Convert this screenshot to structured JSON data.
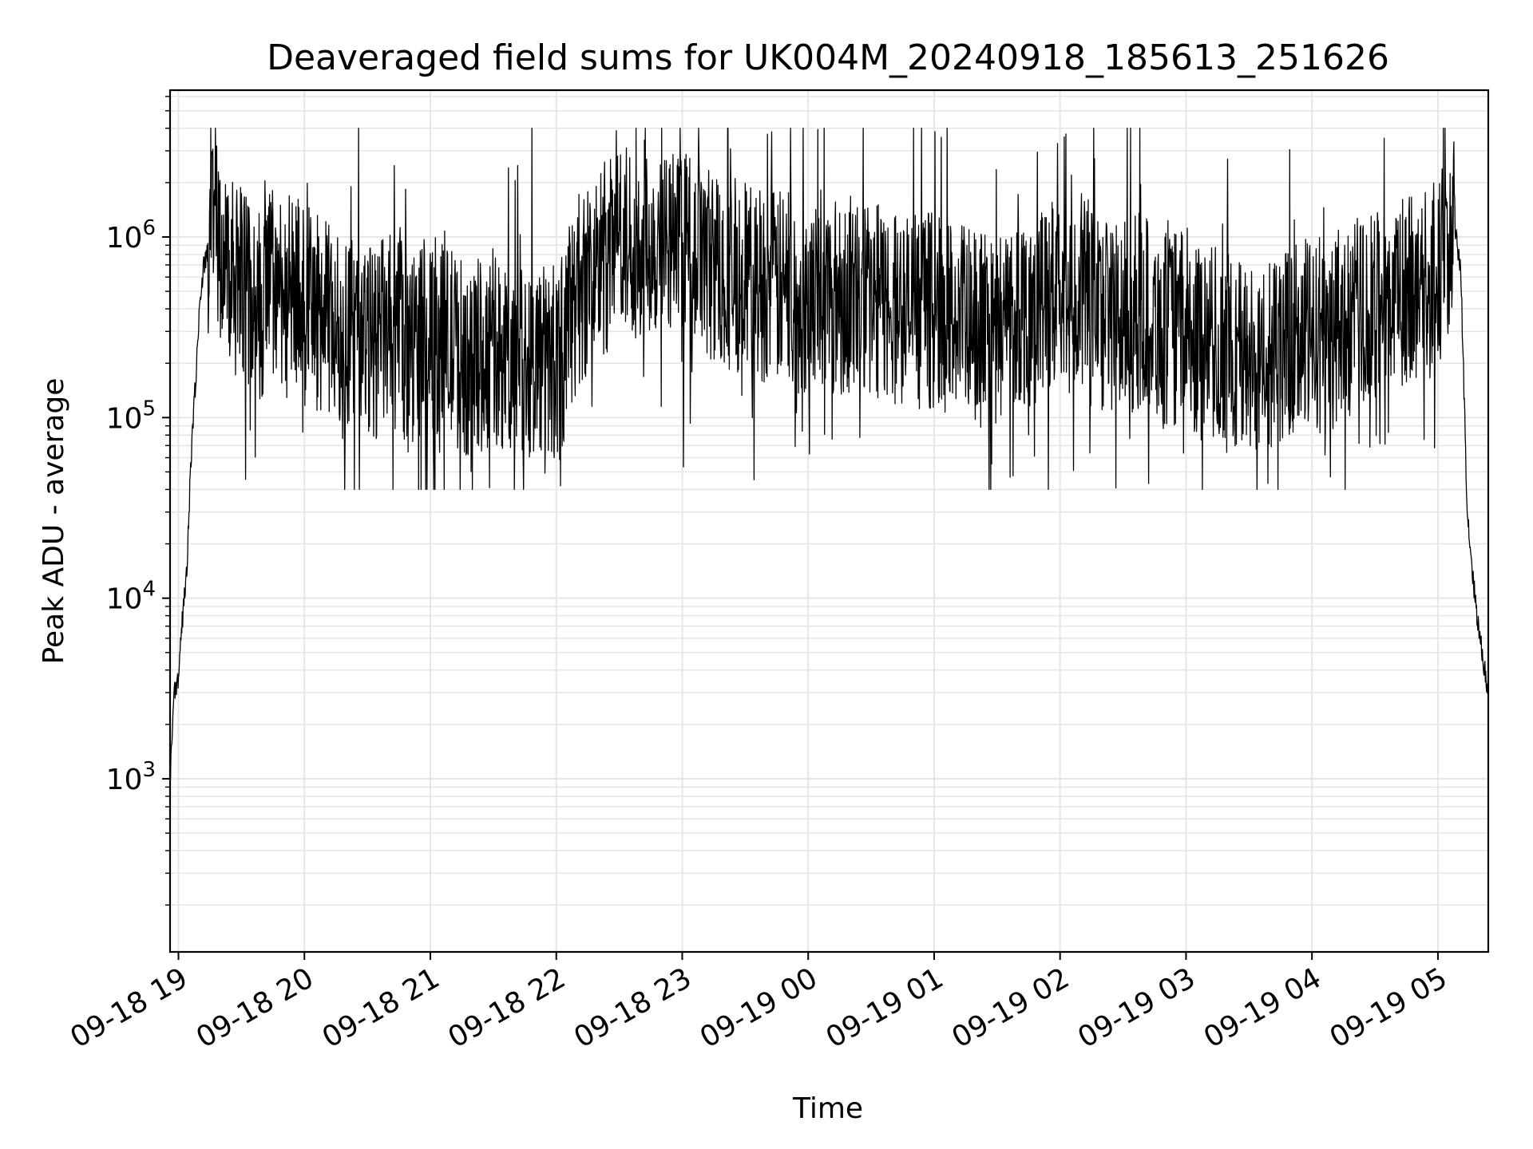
{
  "chart_data": {
    "type": "line",
    "title": "Deaveraged field sums for UK004M_20240918_185613_251626",
    "xlabel": "Time",
    "ylabel": "Peak ADU - average",
    "xscale": "time",
    "yscale": "log",
    "grid": true,
    "grid_minor": true,
    "line_color": "#000000",
    "grid_color": "#e6e6e6",
    "xlim": [
      "2024-09-18 18:56",
      "2024-09-19 05:24"
    ],
    "ylim": [
      110,
      6500000
    ],
    "x_ticks": [
      {
        "value": "2024-09-18 19:00",
        "label": "09-18 19"
      },
      {
        "value": "2024-09-18 20:00",
        "label": "09-18 20"
      },
      {
        "value": "2024-09-18 21:00",
        "label": "09-18 21"
      },
      {
        "value": "2024-09-18 22:00",
        "label": "09-18 22"
      },
      {
        "value": "2024-09-18 23:00",
        "label": "09-18 23"
      },
      {
        "value": "2024-09-19 00:00",
        "label": "09-19 00"
      },
      {
        "value": "2024-09-19 01:00",
        "label": "09-19 01"
      },
      {
        "value": "2024-09-19 02:00",
        "label": "09-19 02"
      },
      {
        "value": "2024-09-19 03:00",
        "label": "09-19 03"
      },
      {
        "value": "2024-09-19 04:00",
        "label": "09-19 04"
      },
      {
        "value": "2024-09-19 05:00",
        "label": "09-19 05"
      }
    ],
    "y_ticks": [
      {
        "value": 1000,
        "base": "10",
        "exp": "3"
      },
      {
        "value": 10000,
        "base": "10",
        "exp": "4"
      },
      {
        "value": 100000,
        "base": "10",
        "exp": "5"
      },
      {
        "value": 1000000,
        "base": "10",
        "exp": "6"
      }
    ],
    "series": [
      {
        "x": [
          "2024-09-18 18:56",
          "2024-09-18 18:58",
          "2024-09-18 19:00",
          "2024-09-18 19:02",
          "2024-09-18 19:04",
          "2024-09-18 19:06",
          "2024-09-18 19:08",
          "2024-09-18 19:10",
          "2024-09-18 19:12",
          "2024-09-18 19:15",
          "2024-09-18 19:18",
          "2024-09-18 19:21",
          "2024-09-18 19:24",
          "2024-09-18 19:27",
          "2024-09-18 19:30",
          "2024-09-18 19:35",
          "2024-09-18 19:40",
          "2024-09-18 19:45",
          "2024-09-18 19:52",
          "2024-09-18 20:00",
          "2024-09-18 20:10",
          "2024-09-18 20:20",
          "2024-09-18 20:30",
          "2024-09-18 20:40",
          "2024-09-18 20:50",
          "2024-09-18 21:00",
          "2024-09-18 21:10",
          "2024-09-18 21:20",
          "2024-09-18 21:30",
          "2024-09-18 21:40",
          "2024-09-18 21:50",
          "2024-09-18 22:00",
          "2024-09-18 22:10",
          "2024-09-18 22:20",
          "2024-09-18 22:30",
          "2024-09-18 22:40",
          "2024-09-18 22:50",
          "2024-09-18 23:00",
          "2024-09-18 23:10",
          "2024-09-18 23:20",
          "2024-09-18 23:30",
          "2024-09-18 23:40",
          "2024-09-18 23:50",
          "2024-09-19 00:00",
          "2024-09-19 00:10",
          "2024-09-19 00:20",
          "2024-09-19 00:30",
          "2024-09-19 00:40",
          "2024-09-19 00:50",
          "2024-09-19 01:00",
          "2024-09-19 01:10",
          "2024-09-19 01:20",
          "2024-09-19 01:30",
          "2024-09-19 01:40",
          "2024-09-19 01:50",
          "2024-09-19 02:00",
          "2024-09-19 02:10",
          "2024-09-19 02:20",
          "2024-09-19 02:30",
          "2024-09-19 02:40",
          "2024-09-19 02:50",
          "2024-09-19 03:00",
          "2024-09-19 03:10",
          "2024-09-19 03:20",
          "2024-09-19 03:30",
          "2024-09-19 03:40",
          "2024-09-19 03:50",
          "2024-09-19 04:00",
          "2024-09-19 04:10",
          "2024-09-19 04:20",
          "2024-09-19 04:30",
          "2024-09-19 04:40",
          "2024-09-19 04:50",
          "2024-09-19 05:00",
          "2024-09-19 05:04",
          "2024-09-19 05:08",
          "2024-09-19 05:11",
          "2024-09-19 05:14",
          "2024-09-19 05:17",
          "2024-09-19 05:20",
          "2024-09-19 05:24"
        ],
        "y": [
          1000,
          3000,
          3500,
          8000,
          15000,
          60000,
          150000,
          400000,
          700000,
          900000,
          1000000,
          800000,
          650000,
          600000,
          600000,
          500000,
          400000,
          600000,
          500000,
          450000,
          350000,
          300000,
          250000,
          300000,
          250000,
          300000,
          250000,
          200000,
          250000,
          200000,
          220000,
          180000,
          500000,
          700000,
          900000,
          1000000,
          950000,
          800000,
          750000,
          650000,
          600000,
          550000,
          500000,
          450000,
          480000,
          500000,
          450000,
          420000,
          380000,
          400000,
          350000,
          300000,
          320000,
          400000,
          420000,
          450000,
          500000,
          400000,
          350000,
          400000,
          300000,
          320000,
          260000,
          250000,
          200000,
          220000,
          260000,
          280000,
          300000,
          350000,
          400000,
          450000,
          500000,
          600000,
          900000,
          1200000,
          600000,
          30000,
          12000,
          6000,
          3000
        ],
        "noise_range": [
          40000,
          4000000
        ],
        "noise_start": "2024-09-18 19:14",
        "noise_end": "2024-09-19 05:08"
      }
    ]
  }
}
